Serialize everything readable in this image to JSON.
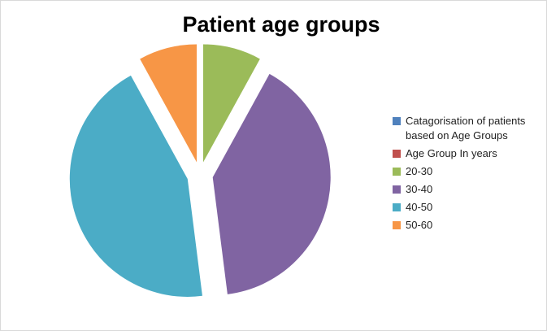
{
  "chart_data": {
    "type": "pie",
    "title": "Patient age groups",
    "legend_title": "Catagorisation of patients based on Age Groups",
    "categories": [
      "Age Group In years",
      "20-30",
      "30-40",
      "40-50",
      "50-60"
    ],
    "values": [
      0,
      8,
      40,
      44,
      8
    ],
    "colors": [
      "#c0504d",
      "#9bbb59",
      "#8064a2",
      "#4bacc6",
      "#f79646"
    ],
    "legend_title_color": "#4f81bd",
    "legend": "right"
  }
}
